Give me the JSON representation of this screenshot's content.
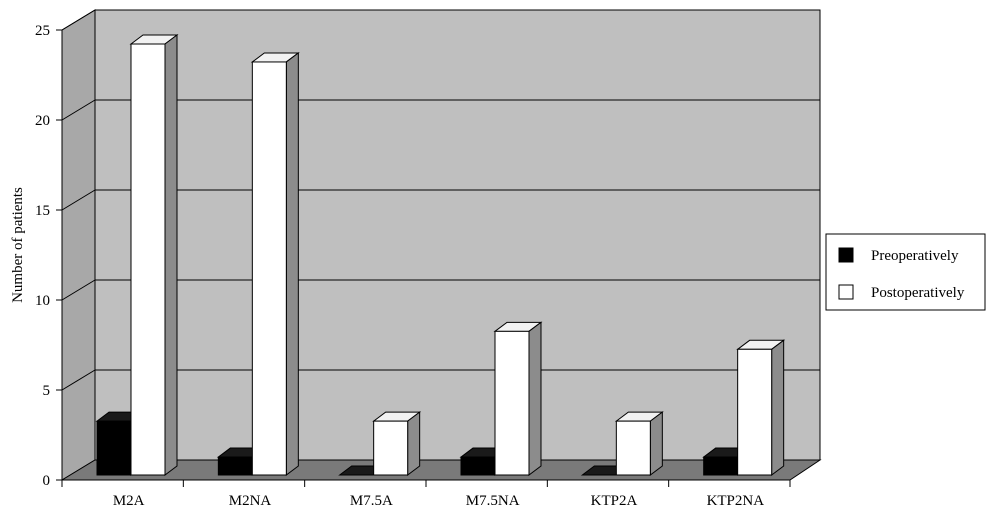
{
  "chart_data": {
    "type": "bar",
    "ylabel": "Number of patients",
    "categories": [
      "M2A",
      "M2NA",
      "M7.5A",
      "M7.5NA",
      "KTP2A",
      "KTP2NA"
    ],
    "series": [
      {
        "name": "Preoperatively",
        "values": [
          3,
          1,
          0,
          1,
          0,
          1
        ],
        "color": "#000000"
      },
      {
        "name": "Postoperatively",
        "values": [
          24,
          23,
          3,
          8,
          3,
          7
        ],
        "color": "#ffffff"
      }
    ],
    "ylim": [
      0,
      25
    ],
    "yticks": [
      "0",
      "5",
      "10",
      "15",
      "20",
      "25"
    ],
    "grid": true,
    "legend_position": "right",
    "style": "3d-bar"
  }
}
